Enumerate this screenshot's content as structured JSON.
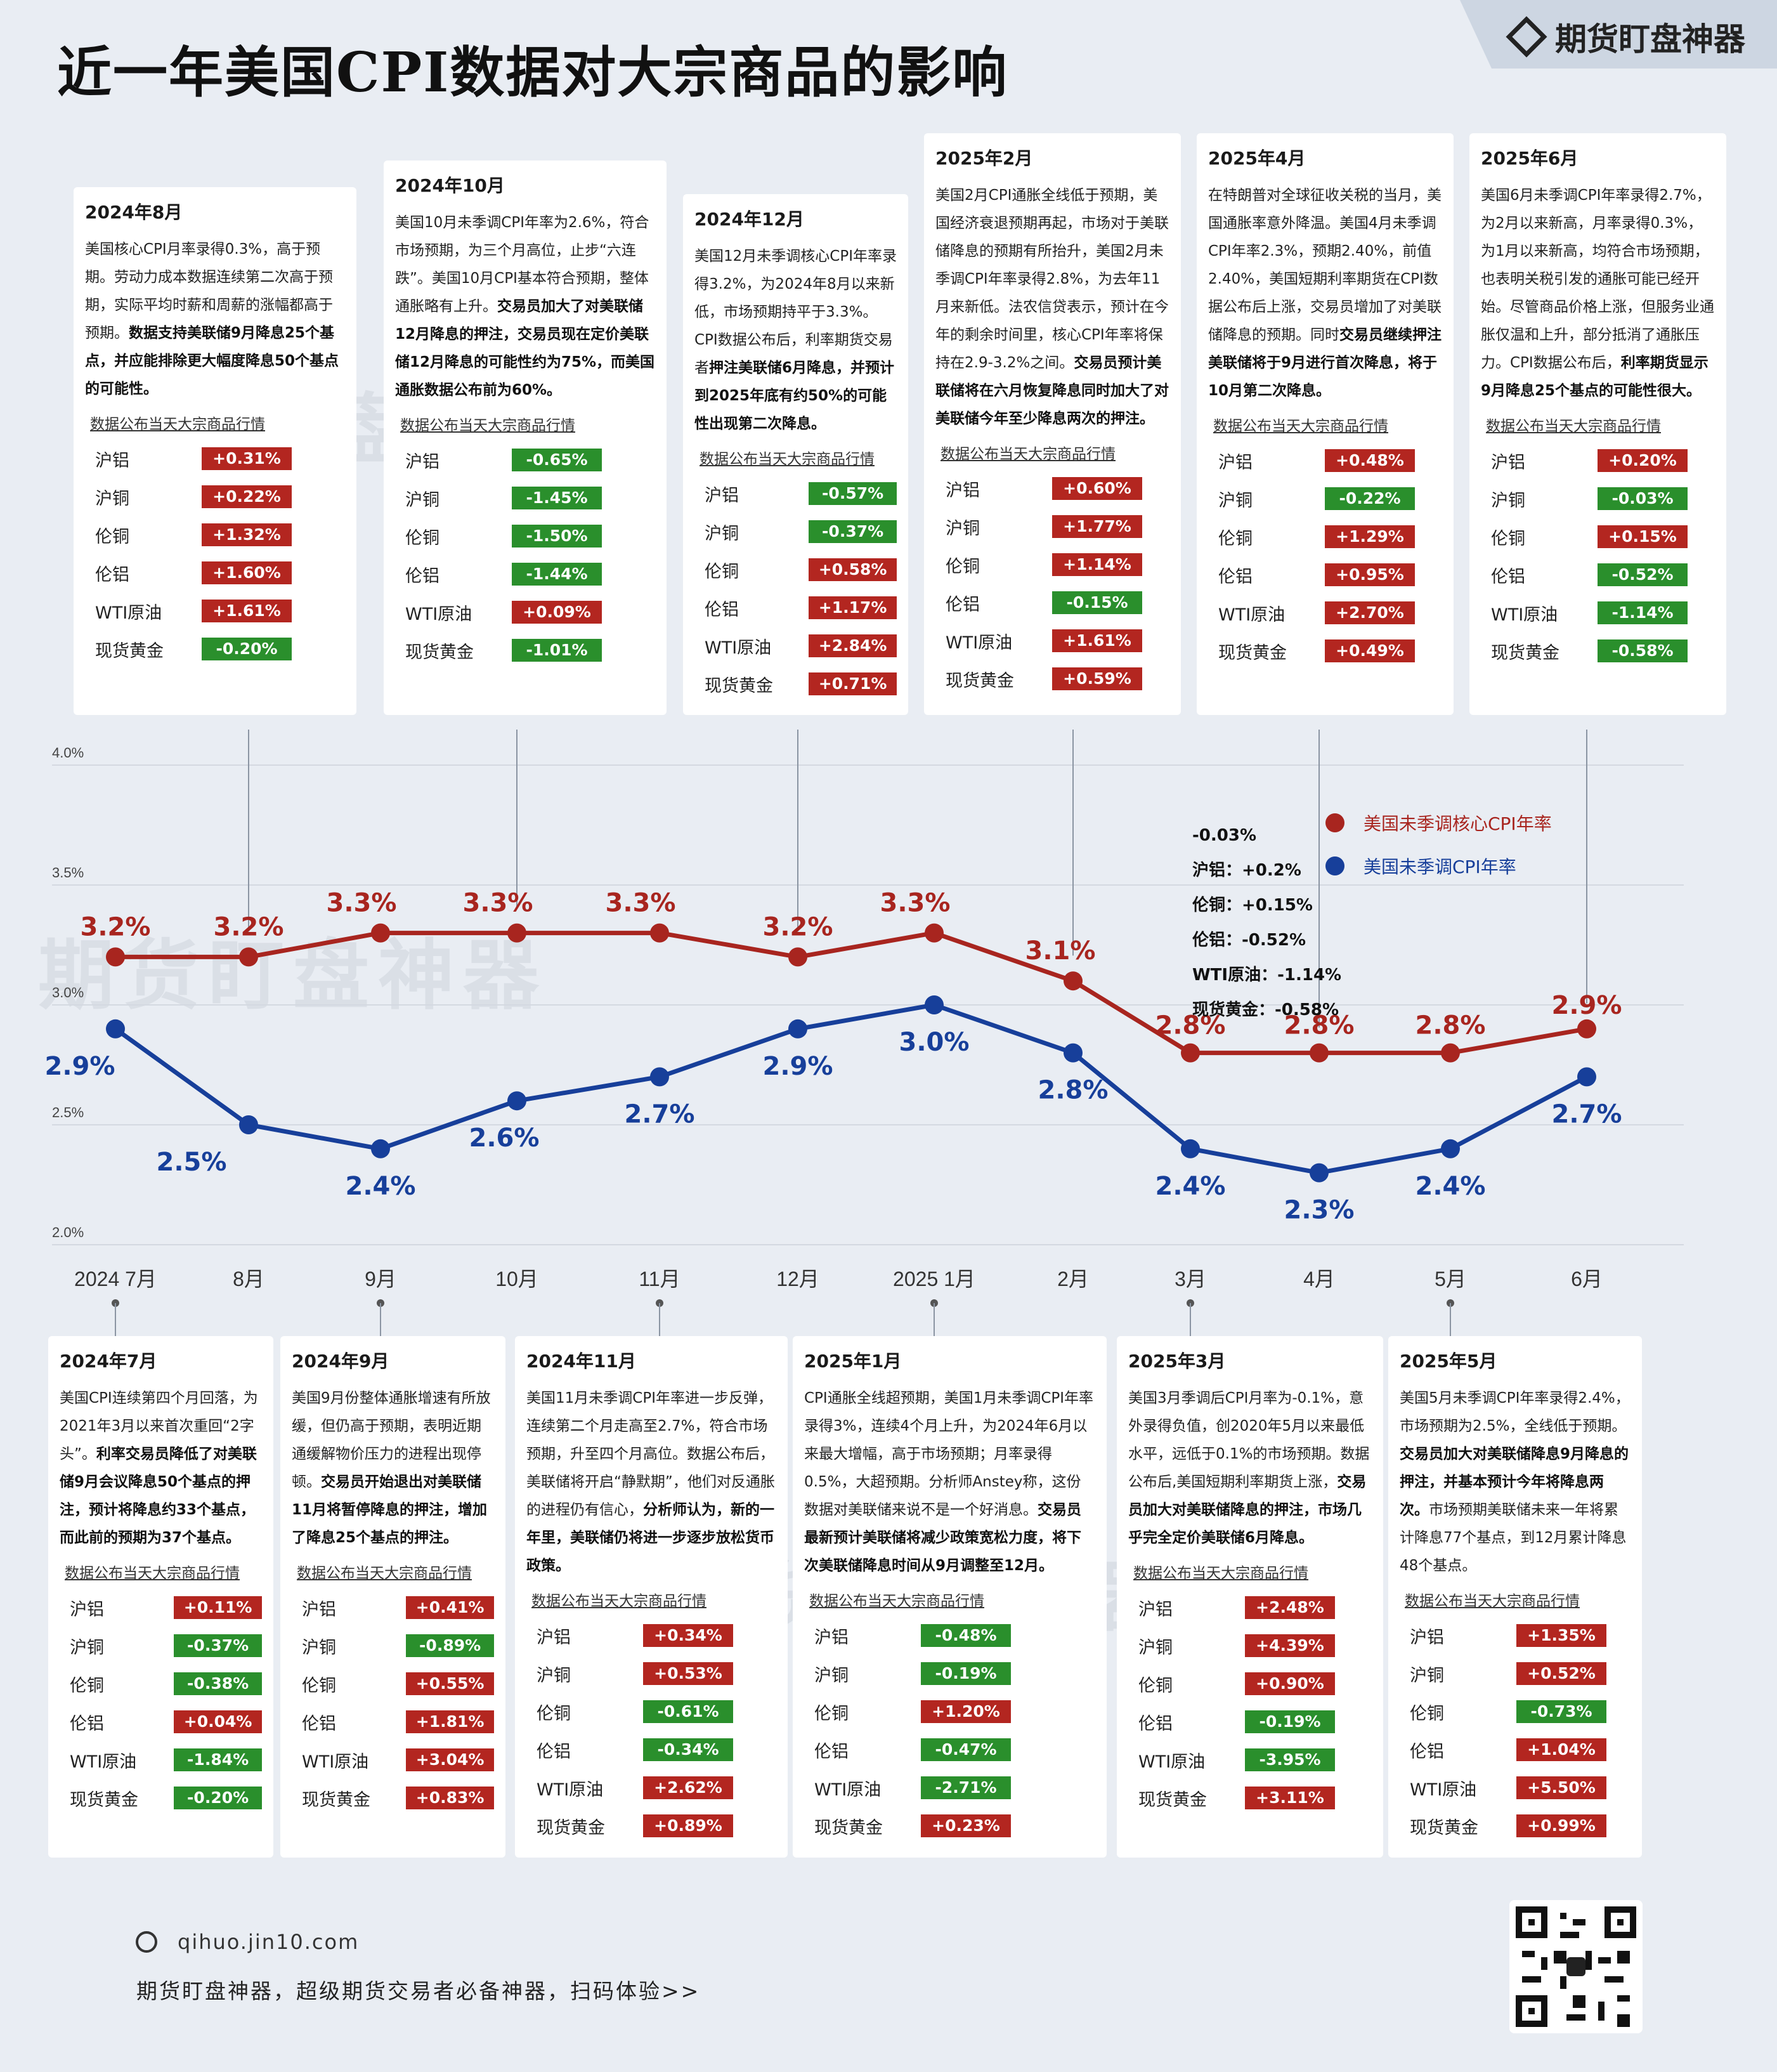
{
  "header": {
    "title": "近一年美国CPI数据对大宗商品的影响",
    "brand": "期货盯盘神器"
  },
  "watermark": "期货盯盘神器",
  "market_heading": "数据公布当天大宗商品行情",
  "colors": {
    "core_cpi": "#a8251f",
    "cpi": "#173f9a",
    "up": "#b32620",
    "down": "#2a8f2c"
  },
  "chart_data": {
    "type": "line",
    "categories": [
      "2024 7月",
      "8月",
      "9月",
      "10月",
      "11月",
      "12月",
      "2025 1月",
      "2月",
      "3月",
      "4月",
      "5月",
      "6月"
    ],
    "series": [
      {
        "name": "美国未季调核心CPI年率",
        "values": [
          3.2,
          3.2,
          3.3,
          3.3,
          3.3,
          3.2,
          3.3,
          3.1,
          2.8,
          2.8,
          2.8,
          2.9
        ],
        "labels": [
          "3.2%",
          "3.2%",
          "3.3%",
          "3.3%",
          "3.3%",
          "3.2%",
          "3.3%",
          "3.1%",
          "2.8%",
          "2.8%",
          "2.8%",
          "2.9%"
        ]
      },
      {
        "name": "美国未季调CPI年率",
        "values": [
          2.9,
          2.5,
          2.4,
          2.6,
          2.7,
          2.9,
          3.0,
          2.8,
          2.4,
          2.3,
          2.4,
          2.7
        ],
        "labels": [
          "2.9%",
          "2.5%",
          "2.4%",
          "2.6%",
          "2.7%",
          "2.9%",
          "3.0%",
          "2.8%",
          "2.4%",
          "2.3%",
          "2.4%",
          "2.7%"
        ]
      }
    ],
    "ylim": [
      2.0,
      4.0
    ],
    "yticks": [
      "2.0%",
      "2.5%",
      "3.0%",
      "3.5%",
      "4.0%"
    ],
    "grid": true,
    "legend": "right"
  },
  "note": {
    "lines": [
      "-0.03%",
      "沪铝：+0.2%",
      "伦铜：+0.15%",
      "伦铝：-0.52%",
      "WTI原油：-1.14%",
      "现货黄金：-0.58%"
    ]
  },
  "top_cards": [
    {
      "title": "2024年8月",
      "body": "美国核心CPI月率录得0.3%，高于预期。劳动力成本数据连续第二次高于预期，实际平均时薪和周薪的涨幅都高于预期。",
      "bold": "数据支持美联储9月降息25个基点，并应能排除更大幅度降息50个基点的可能性。",
      "rows": [
        [
          "沪铝",
          "+0.31%"
        ],
        [
          "沪铜",
          "+0.22%"
        ],
        [
          "伦铜",
          "+1.32%"
        ],
        [
          "伦铝",
          "+1.60%"
        ],
        [
          "WTI原油",
          "+1.61%"
        ],
        [
          "现货黄金",
          "-0.20%"
        ]
      ]
    },
    {
      "title": "2024年10月",
      "body": "美国10月未季调CPI年率为2.6%，符合市场预期，为三个月高位，止步“六连跌”。美国10月CPI基本符合预期，整体通胀略有上升。",
      "bold": "交易员加大了对美联储12月降息的押注，交易员现在定价美联储12月降息的可能性约为75%，而美国通胀数据公布前为60%。",
      "rows": [
        [
          "沪铝",
          "-0.65%"
        ],
        [
          "沪铜",
          "-1.45%"
        ],
        [
          "伦铜",
          "-1.50%"
        ],
        [
          "伦铝",
          "-1.44%"
        ],
        [
          "WTI原油",
          "+0.09%"
        ],
        [
          "现货黄金",
          "-1.01%"
        ]
      ]
    },
    {
      "title": "2024年12月",
      "body": "美国12月未季调核心CPI年率录得3.2%，为2024年8月以来新低，市场预期持平于3.3%。CPI数据公布后，利率期货交易者",
      "bold": "押注美联储6月降息，并预计到2025年底有约50%的可能性出现第二次降息。",
      "rows": [
        [
          "沪铝",
          "-0.57%"
        ],
        [
          "沪铜",
          "-0.37%"
        ],
        [
          "伦铜",
          "+0.58%"
        ],
        [
          "伦铝",
          "+1.17%"
        ],
        [
          "WTI原油",
          "+2.84%"
        ],
        [
          "现货黄金",
          "+0.71%"
        ]
      ]
    },
    {
      "title": "2025年2月",
      "body": "美国2月CPI通胀全线低于预期，美国经济衰退预期再起，市场对于美联储降息的预期有所抬升，美国2月未季调CPI年率录得2.8%，为去年11月来新低。法农信贷表示，预计在今年的剩余时间里，核心CPI年率将保持在2.9-3.2%之间。",
      "bold": "交易员预计美联储将在六月恢复降息同时加大了对美联储今年至少降息两次的押注。",
      "rows": [
        [
          "沪铝",
          "+0.60%"
        ],
        [
          "沪铜",
          "+1.77%"
        ],
        [
          "伦铜",
          "+1.14%"
        ],
        [
          "伦铝",
          "-0.15%"
        ],
        [
          "WTI原油",
          "+1.61%"
        ],
        [
          "现货黄金",
          "+0.59%"
        ]
      ]
    },
    {
      "title": "2025年4月",
      "body": "在特朗普对全球征收关税的当月，美国通胀率意外降温。美国4月未季调CPI年率2.3%，预期2.40%，前值2.40%，美国短期利率期货在CPI数据公布后上涨，交易员增加了对美联储降息的预期。同时",
      "bold": "交易员继续押注美联储将于9月进行首次降息，将于10月第二次降息。",
      "rows": [
        [
          "沪铝",
          "+0.48%"
        ],
        [
          "沪铜",
          "-0.22%"
        ],
        [
          "伦铜",
          "+1.29%"
        ],
        [
          "伦铝",
          "+0.95%"
        ],
        [
          "WTI原油",
          "+2.70%"
        ],
        [
          "现货黄金",
          "+0.49%"
        ]
      ]
    },
    {
      "title": "2025年6月",
      "body": "美国6月未季调CPI年率录得2.7%，为2月以来新高，月率录得0.3%，为1月以来新高，均符合市场预期，也表明关税引发的通胀可能已经开始。尽管商品价格上涨，但服务业通胀仅温和上升，部分抵消了通胀压力。CPI数据公布后，",
      "bold": "利率期货显示9月降息25个基点的可能性很大。",
      "rows": [
        [
          "沪铝",
          "+0.20%"
        ],
        [
          "沪铜",
          "-0.03%"
        ],
        [
          "伦铜",
          "+0.15%"
        ],
        [
          "伦铝",
          "-0.52%"
        ],
        [
          "WTI原油",
          "-1.14%"
        ],
        [
          "现货黄金",
          "-0.58%"
        ]
      ]
    }
  ],
  "bottom_cards": [
    {
      "title": "2024年7月",
      "body": "美国CPI连续第四个月回落，为2021年3月以来首次重回“2字头”。",
      "bold": "利率交易员降低了对美联储9月会议降息50个基点的押注，预计将降息约33个基点，而此前的预期为37个基点。",
      "rows": [
        [
          "沪铝",
          "+0.11%"
        ],
        [
          "沪铜",
          "-0.37%"
        ],
        [
          "伦铜",
          "-0.38%"
        ],
        [
          "伦铝",
          "+0.04%"
        ],
        [
          "WTI原油",
          "-1.84%"
        ],
        [
          "现货黄金",
          "-0.20%"
        ]
      ]
    },
    {
      "title": "2024年9月",
      "body": "美国9月份整体通胀增速有所放缓，但仍高于预期，表明近期通缓解物价压力的进程出现停顿。",
      "bold": "交易员开始退出对美联储11月将暂停降息的押注，增加了降息25个基点的押注。",
      "rows": [
        [
          "沪铝",
          "+0.41%"
        ],
        [
          "沪铜",
          "-0.89%"
        ],
        [
          "伦铜",
          "+0.55%"
        ],
        [
          "伦铝",
          "+1.81%"
        ],
        [
          "WTI原油",
          "+3.04%"
        ],
        [
          "现货黄金",
          "+0.83%"
        ]
      ]
    },
    {
      "title": "2024年11月",
      "body": "美国11月未季调CPI年率进一步反弹，连续第二个月走高至2.7%，符合市场预期，升至四个月高位。数据公布后，美联储将开启“静默期”，他们对反通胀的进程仍有信心，",
      "bold": "分析师认为，新的一年里，美联储仍将进一步逐步放松货币政策。",
      "rows": [
        [
          "沪铝",
          "+0.34%"
        ],
        [
          "沪铜",
          "+0.53%"
        ],
        [
          "伦铜",
          "-0.61%"
        ],
        [
          "伦铝",
          "-0.34%"
        ],
        [
          "WTI原油",
          "+2.62%"
        ],
        [
          "现货黄金",
          "+0.89%"
        ]
      ]
    },
    {
      "title": "2025年1月",
      "body": "CPI通胀全线超预期，美国1月未季调CPI年率录得3%，连续4个月上升，为2024年6月以来最大增幅，高于市场预期；月率录得0.5%，大超预期。分析师Anstey称，这份数据对美联储来说不是一个好消息。",
      "bold": "交易员最新预计美联储将减少政策宽松力度，将下次美联储降息时间从9月调整至12月。",
      "rows": [
        [
          "沪铝",
          "-0.48%"
        ],
        [
          "沪铜",
          "-0.19%"
        ],
        [
          "伦铜",
          "+1.20%"
        ],
        [
          "伦铝",
          "-0.47%"
        ],
        [
          "WTI原油",
          "-2.71%"
        ],
        [
          "现货黄金",
          "+0.23%"
        ]
      ]
    },
    {
      "title": "2025年3月",
      "body": "美国3月季调后CPI月率为-0.1%，意外录得负值，创2020年5月以来最低水平，远低于0.1%的市场预期。数据公布后,美国短期利率期货上涨，",
      "bold": "交易员加大对美联储降息的押注，市场几乎完全定价美联储6月降息。",
      "rows": [
        [
          "沪铝",
          "+2.48%"
        ],
        [
          "沪铜",
          "+4.39%"
        ],
        [
          "伦铜",
          "+0.90%"
        ],
        [
          "伦铝",
          "-0.19%"
        ],
        [
          "WTI原油",
          "-3.95%"
        ],
        [
          "现货黄金",
          "+3.11%"
        ]
      ]
    },
    {
      "title": "2025年5月",
      "body": "美国5月未季调CPI年率录得2.4%，市场预期为2.5%，全线低于预期。",
      "bold": "交易员加大对美联储降息9月降息的押注，并基本预计今年将降息两次。",
      "tail": "市场预期美联储未来一年将累计降息77个基点，到12月累计降息48个基点。",
      "rows": [
        [
          "沪铝",
          "+1.35%"
        ],
        [
          "沪铜",
          "+0.52%"
        ],
        [
          "伦铜",
          "-0.73%"
        ],
        [
          "伦铝",
          "+1.04%"
        ],
        [
          "WTI原油",
          "+5.50%"
        ],
        [
          "现货黄金",
          "+0.99%"
        ]
      ]
    }
  ],
  "footer": {
    "url": "qihuo.jin10.com",
    "text": "期货盯盘神器，超级期货交易者必备神器，扫码体验>>"
  }
}
